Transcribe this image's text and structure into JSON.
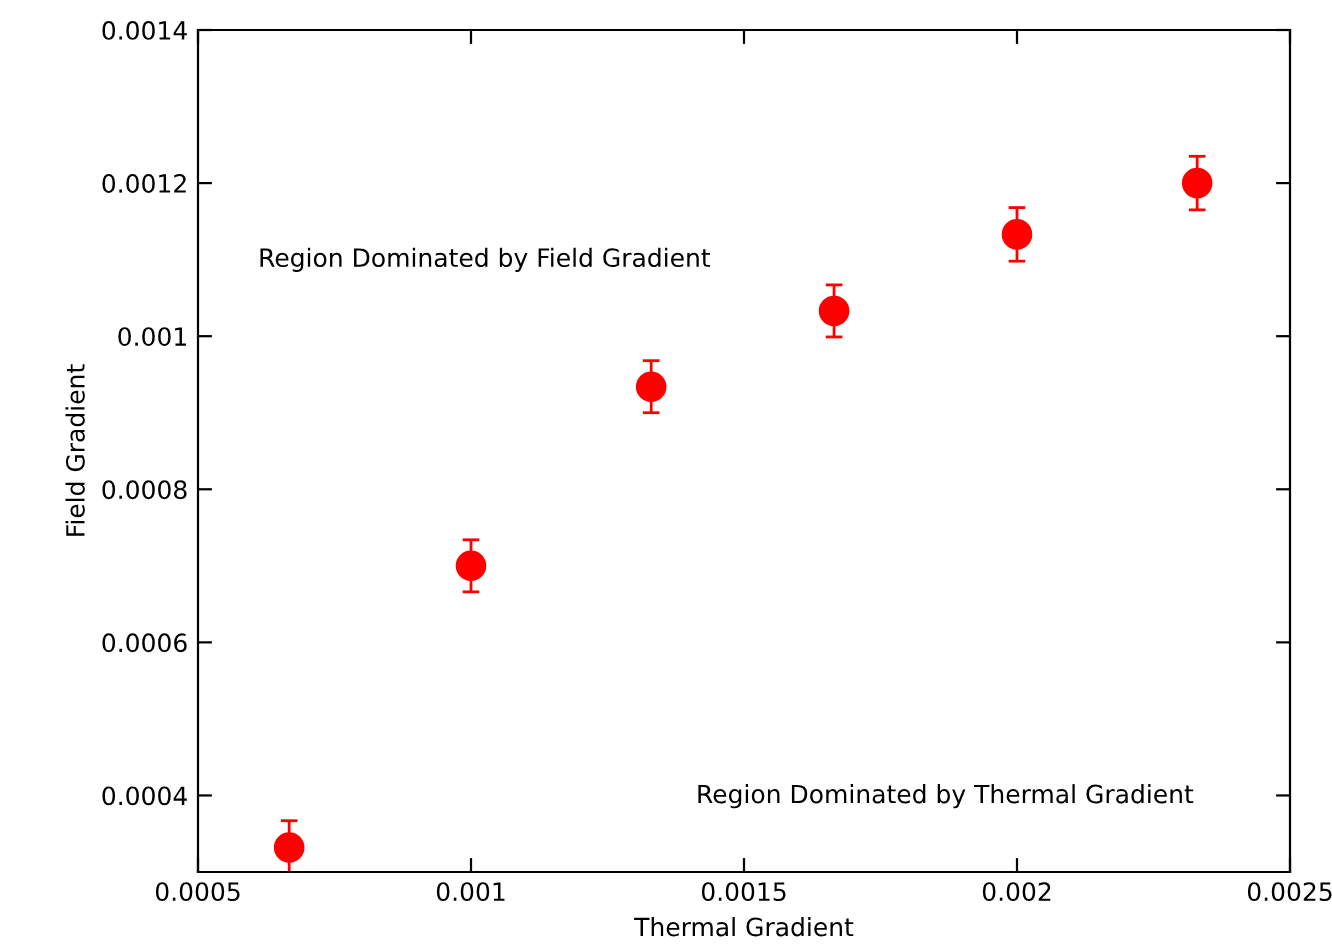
{
  "chart_data": {
    "type": "scatter",
    "xlabel": "Thermal Gradient",
    "ylabel": "Field Gradient",
    "x": [
      0.000667,
      0.001,
      0.00133,
      0.001665,
      0.002,
      0.00233
    ],
    "series": [
      {
        "color": "#ff0000",
        "values": [
          0.000332,
          0.0007,
          0.000934,
          0.001033,
          0.001133,
          0.0012
        ],
        "errors": [
          3.5e-05,
          3.4e-05,
          3.4e-05,
          3.4e-05,
          3.5e-05,
          3.5e-05
        ]
      }
    ],
    "xlim": [
      0.0005,
      0.0025
    ],
    "xticks": [
      0.0005,
      0.001,
      0.0015,
      0.002,
      0.0025
    ],
    "ylim": [
      0.0003,
      0.0014
    ],
    "yticks": [
      0.0004,
      0.0006,
      0.0008,
      0.001,
      0.0012,
      0.0014
    ],
    "marker": "circle",
    "grid": false,
    "legend": false,
    "annotations": [
      "Region Dominated by Field Gradient",
      "Region Dominated by Thermal Gradient"
    ]
  }
}
